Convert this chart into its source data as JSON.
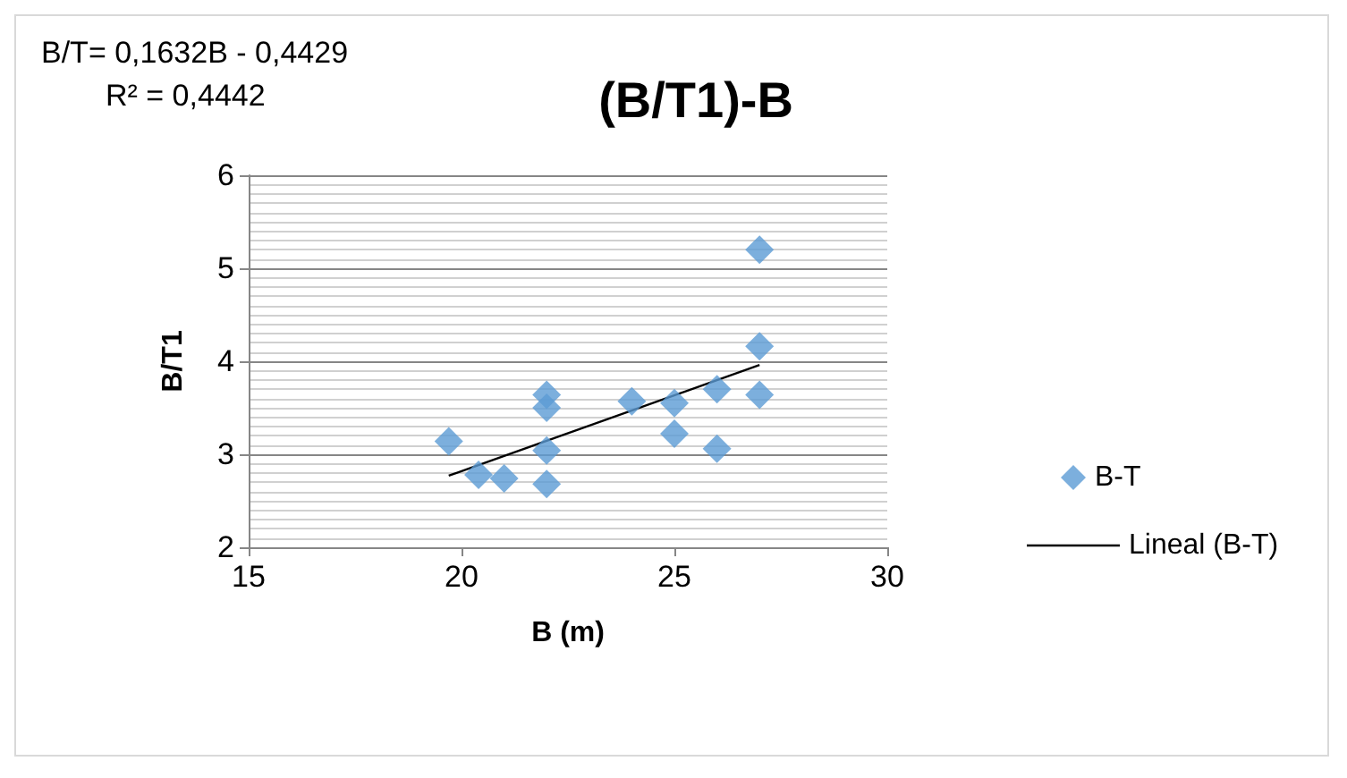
{
  "chart_data": {
    "type": "scatter",
    "title": "(B/T1)-B",
    "xlabel": "B (m)",
    "ylabel": "B/T1",
    "annotations": [
      "B/T= 0,1632B - 0,4429",
      "R² = 0,4442"
    ],
    "series": [
      {
        "name": "B-T",
        "color": "#5b9bd5",
        "marker": "diamond",
        "x": [
          19.7,
          20.4,
          21.0,
          22.0,
          22.0,
          22.0,
          22.0,
          24.0,
          25.0,
          25.0,
          26.0,
          26.0,
          27.0,
          27.0,
          27.0
        ],
        "values": [
          3.14,
          2.78,
          2.74,
          3.64,
          3.5,
          3.04,
          2.68,
          3.57,
          3.55,
          3.22,
          3.7,
          3.06,
          5.2,
          4.16,
          3.64
        ]
      },
      {
        "name": "Lineal (B-T)",
        "type": "line",
        "color": "#000000",
        "marker": "none",
        "line_style": "solid",
        "x": [
          19.7,
          27.0
        ],
        "values": [
          2.77,
          3.96
        ]
      }
    ],
    "xlim": [
      15,
      30
    ],
    "xticks": [
      15,
      20,
      25,
      30
    ],
    "ylim": [
      2,
      6
    ],
    "yticks": [
      2,
      3,
      4,
      5,
      6
    ],
    "grid": "y",
    "legend": "right"
  }
}
